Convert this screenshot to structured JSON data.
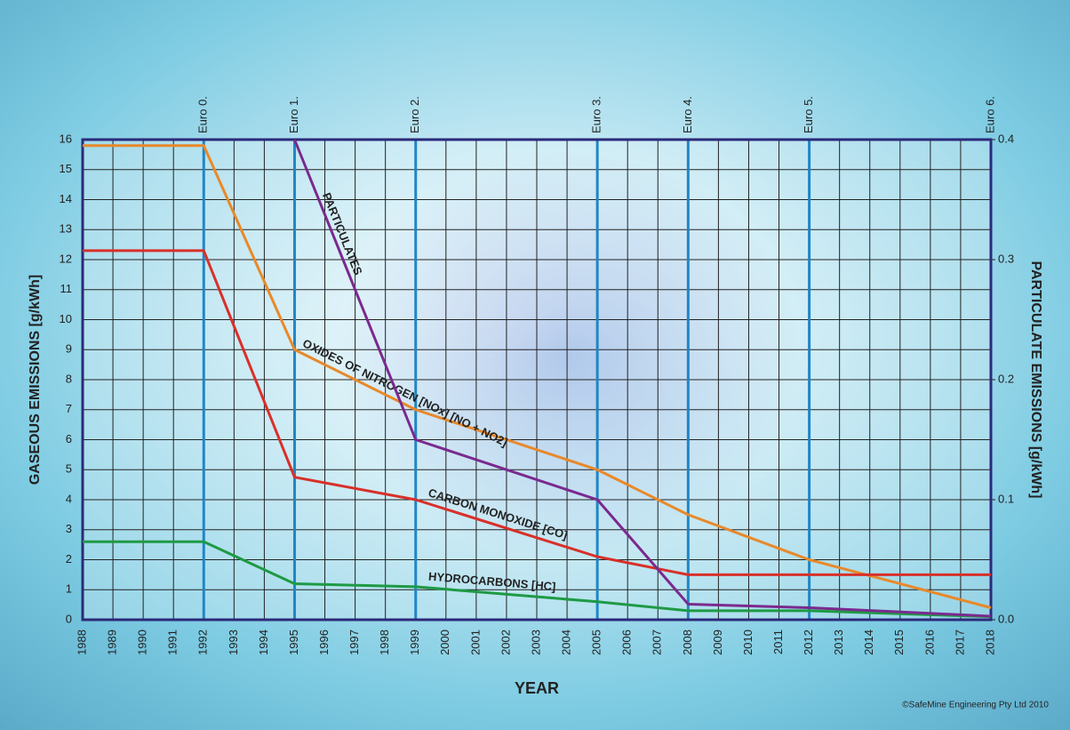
{
  "chart_data": {
    "type": "line",
    "y_label": "GASEOUS EMISSIONS [g/kWh]",
    "y2_label": "PARTICULATE EMISSIONS [g/kWh]",
    "x_label": "YEAR",
    "credit": "©SafeMine Engineering Pty Ltd 2010",
    "xlim": [
      1988,
      2018
    ],
    "xticks": [
      1988,
      1989,
      1990,
      1991,
      1992,
      1993,
      1994,
      1995,
      1996,
      1997,
      1998,
      1999,
      2000,
      2001,
      2002,
      2003,
      2004,
      2005,
      2006,
      2007,
      2008,
      2009,
      2010,
      2011,
      2012,
      2013,
      2014,
      2015,
      2016,
      2017,
      2018
    ],
    "ylim": [
      0,
      16
    ],
    "yticks": [
      0,
      1,
      2,
      3,
      4,
      5,
      6,
      7,
      8,
      9,
      10,
      11,
      12,
      13,
      14,
      15,
      16
    ],
    "y2lim": [
      0,
      0.4
    ],
    "y2ticks": [
      {
        "value": 0,
        "label": "0.0"
      },
      0.1,
      0.2,
      0.3,
      0.4
    ],
    "grid": true,
    "standards": [
      {
        "label": "Euro 0.",
        "x": 1992
      },
      {
        "label": "Euro 1.",
        "x": 1995
      },
      {
        "label": "Euro 2.",
        "x": 1999
      },
      {
        "label": "Euro 3.",
        "x": 2005
      },
      {
        "label": "Euro 4.",
        "x": 2008
      },
      {
        "label": "Euro 5.",
        "x": 2012
      },
      {
        "label": "Euro 6.",
        "x": 2018
      }
    ],
    "series": [
      {
        "name": "OXIDES OF NITROGEN [NOx] [NO + NO2]",
        "color": "#e8892a",
        "x": [
          1988,
          1992,
          1995,
          1999,
          2005,
          2008,
          2012,
          2018
        ],
        "values": [
          15.8,
          15.8,
          9.0,
          7.0,
          5.0,
          3.5,
          2.0,
          0.4
        ]
      },
      {
        "name": "CARBON MONOXIDE [CO]",
        "color": "#d8302a",
        "x": [
          1988,
          1992,
          1995,
          1999,
          2005,
          2008,
          2018
        ],
        "values": [
          12.3,
          12.3,
          4.75,
          4.0,
          2.1,
          1.5,
          1.5
        ]
      },
      {
        "name": "HYDROCARBONS [HC]",
        "color": "#1e9a44",
        "x": [
          1988,
          1992,
          1995,
          1999,
          2005,
          2008,
          2012,
          2018
        ],
        "values": [
          2.6,
          2.6,
          1.2,
          1.1,
          0.6,
          0.3,
          0.3,
          0.1
        ]
      },
      {
        "name": "PARTICULATES",
        "color": "#7a2a8e",
        "axis": "y2",
        "x": [
          1995,
          1999,
          2005,
          2008,
          2012,
          2018
        ],
        "values": [
          0.4,
          0.15,
          0.1,
          0.013,
          0.01,
          0.003
        ]
      }
    ]
  }
}
